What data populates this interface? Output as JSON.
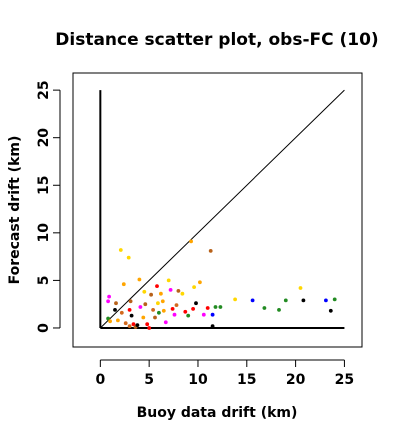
{
  "chart_data": {
    "type": "scatter",
    "title": "Distance scatter plot, obs-FC (10)",
    "xlabel": "Buoy data drift (km)",
    "ylabel": "Forecast drift (km)",
    "xlim": [
      -2.8,
      26.8
    ],
    "ylim": [
      -2.0,
      26.8
    ],
    "xticks": [
      0,
      5,
      10,
      15,
      20,
      25
    ],
    "yticks": [
      0,
      5,
      10,
      15,
      20,
      25
    ],
    "xtick_labels": [
      "0",
      "5",
      "10",
      "15",
      "20",
      "25"
    ],
    "ytick_labels": [
      "0",
      "5",
      "10",
      "15",
      "20",
      "25"
    ],
    "reference_lines": [
      {
        "name": "diagonal",
        "x": [
          0,
          25
        ],
        "y": [
          0,
          25
        ],
        "color": "#000000"
      },
      {
        "name": "vertical-axis-line",
        "x": [
          0,
          0
        ],
        "y": [
          0,
          25
        ],
        "color": "#000000"
      },
      {
        "name": "horizontal-axis-line",
        "x": [
          0,
          25
        ],
        "y": [
          0,
          0
        ],
        "color": "#000000"
      }
    ],
    "colors": {
      "black": "#000000",
      "brown": "#b8621a",
      "dark_orange": "#d2691e",
      "orange": "#ffa500",
      "gold": "#ffc800",
      "yellow": "#ffd700",
      "red": "#ff0000",
      "magenta": "#ff00ff",
      "blue": "#0000ff",
      "green": "#228b22"
    },
    "points": [
      {
        "x": 0.8,
        "y": 2.8,
        "color": "#ff00ff"
      },
      {
        "x": 0.9,
        "y": 3.3,
        "color": "#ff00ff"
      },
      {
        "x": 0.8,
        "y": 1.0,
        "color": "#228b22"
      },
      {
        "x": 1.0,
        "y": 0.7,
        "color": "#ffa500"
      },
      {
        "x": 1.5,
        "y": 1.9,
        "color": "#000000"
      },
      {
        "x": 1.6,
        "y": 2.6,
        "color": "#b8621a"
      },
      {
        "x": 1.8,
        "y": 0.8,
        "color": "#ffa500"
      },
      {
        "x": 2.1,
        "y": 8.2,
        "color": "#ffd700"
      },
      {
        "x": 2.4,
        "y": 4.6,
        "color": "#ffa500"
      },
      {
        "x": 2.2,
        "y": 1.6,
        "color": "#d2691e"
      },
      {
        "x": 2.6,
        "y": 0.5,
        "color": "#d2691e"
      },
      {
        "x": 2.9,
        "y": 7.4,
        "color": "#ffd700"
      },
      {
        "x": 3.0,
        "y": 1.9,
        "color": "#ff0000"
      },
      {
        "x": 3.1,
        "y": 2.8,
        "color": "#b8621a"
      },
      {
        "x": 3.2,
        "y": 1.3,
        "color": "#000000"
      },
      {
        "x": 3.0,
        "y": 0.2,
        "color": "#d2691e"
      },
      {
        "x": 3.4,
        "y": 0.4,
        "color": "#ff0000"
      },
      {
        "x": 3.6,
        "y": 0.1,
        "color": "#b8621a"
      },
      {
        "x": 3.8,
        "y": 0.3,
        "color": "#000000"
      },
      {
        "x": 4.0,
        "y": 5.1,
        "color": "#ffa500"
      },
      {
        "x": 4.1,
        "y": 2.2,
        "color": "#ff00ff"
      },
      {
        "x": 4.5,
        "y": 3.8,
        "color": "#ffd700"
      },
      {
        "x": 4.6,
        "y": 2.5,
        "color": "#b8621a"
      },
      {
        "x": 4.4,
        "y": 1.1,
        "color": "#ffa500"
      },
      {
        "x": 4.8,
        "y": 0.4,
        "color": "#ff0000"
      },
      {
        "x": 5.0,
        "y": 0.0,
        "color": "#ff0000"
      },
      {
        "x": 5.2,
        "y": 3.5,
        "color": "#b8621a"
      },
      {
        "x": 5.4,
        "y": 1.9,
        "color": "#d2691e"
      },
      {
        "x": 5.6,
        "y": 1.1,
        "color": "#b8621a"
      },
      {
        "x": 5.8,
        "y": 4.4,
        "color": "#ff0000"
      },
      {
        "x": 5.9,
        "y": 2.6,
        "color": "#ffd700"
      },
      {
        "x": 6.0,
        "y": 1.6,
        "color": "#228b22"
      },
      {
        "x": 6.2,
        "y": 3.6,
        "color": "#ffa500"
      },
      {
        "x": 6.4,
        "y": 2.8,
        "color": "#ffa500"
      },
      {
        "x": 6.5,
        "y": 1.8,
        "color": "#ffa500"
      },
      {
        "x": 6.7,
        "y": 0.6,
        "color": "#ff00ff"
      },
      {
        "x": 7.0,
        "y": 5.0,
        "color": "#ffd700"
      },
      {
        "x": 7.2,
        "y": 4.0,
        "color": "#ff00ff"
      },
      {
        "x": 7.4,
        "y": 2.0,
        "color": "#ff0000"
      },
      {
        "x": 7.6,
        "y": 1.4,
        "color": "#ff00ff"
      },
      {
        "x": 7.8,
        "y": 2.4,
        "color": "#d2691e"
      },
      {
        "x": 8.0,
        "y": 3.9,
        "color": "#b8621a"
      },
      {
        "x": 8.4,
        "y": 3.6,
        "color": "#ffd700"
      },
      {
        "x": 8.7,
        "y": 1.7,
        "color": "#ff0000"
      },
      {
        "x": 9.0,
        "y": 1.3,
        "color": "#228b22"
      },
      {
        "x": 9.3,
        "y": 9.1,
        "color": "#ffa500"
      },
      {
        "x": 9.5,
        "y": 2.0,
        "color": "#ff0000"
      },
      {
        "x": 9.6,
        "y": 4.3,
        "color": "#ffd700"
      },
      {
        "x": 9.8,
        "y": 2.6,
        "color": "#000000"
      },
      {
        "x": 10.2,
        "y": 4.8,
        "color": "#ffa500"
      },
      {
        "x": 10.6,
        "y": 1.4,
        "color": "#ff00ff"
      },
      {
        "x": 11.0,
        "y": 2.1,
        "color": "#ff0000"
      },
      {
        "x": 11.3,
        "y": 8.1,
        "color": "#b8621a"
      },
      {
        "x": 11.5,
        "y": 0.2,
        "color": "#000000"
      },
      {
        "x": 11.5,
        "y": 1.4,
        "color": "#0000ff"
      },
      {
        "x": 11.8,
        "y": 2.2,
        "color": "#228b22"
      },
      {
        "x": 12.3,
        "y": 2.2,
        "color": "#228b22"
      },
      {
        "x": 13.8,
        "y": 3.0,
        "color": "#ffd700"
      },
      {
        "x": 15.6,
        "y": 2.9,
        "color": "#0000ff"
      },
      {
        "x": 16.8,
        "y": 2.1,
        "color": "#228b22"
      },
      {
        "x": 18.3,
        "y": 1.9,
        "color": "#228b22"
      },
      {
        "x": 19.0,
        "y": 2.9,
        "color": "#228b22"
      },
      {
        "x": 20.5,
        "y": 4.2,
        "color": "#ffd700"
      },
      {
        "x": 20.8,
        "y": 2.9,
        "color": "#000000"
      },
      {
        "x": 23.1,
        "y": 2.9,
        "color": "#0000ff"
      },
      {
        "x": 23.6,
        "y": 1.8,
        "color": "#000000"
      },
      {
        "x": 24.0,
        "y": 3.0,
        "color": "#228b22"
      }
    ]
  }
}
